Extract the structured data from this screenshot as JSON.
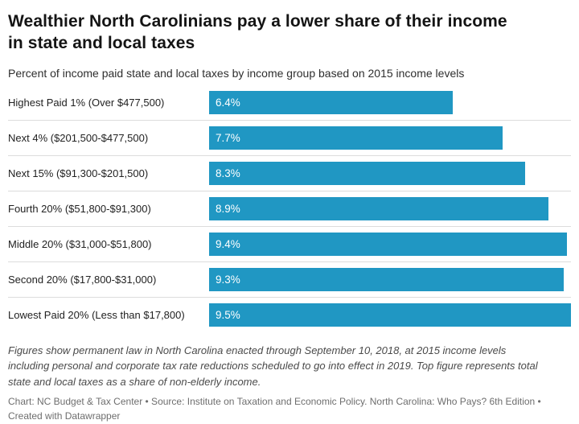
{
  "header": {
    "title": "Wealthier North Carolinians pay a lower share of their income in state and local taxes",
    "subtitle": "Percent of income paid state and local taxes by income group based on 2015 income levels"
  },
  "chart_data": {
    "type": "bar",
    "orientation": "horizontal",
    "title": "Wealthier North Carolinians pay a lower share of their income in state and local taxes",
    "subtitle": "Percent of income paid state and local taxes by income group based on 2015 income levels",
    "categories": [
      "Highest Paid 1% (Over $477,500)",
      "Next 4% ($201,500-$477,500)",
      "Next 15% ($91,300-$201,500)",
      "Fourth 20% ($51,800-$91,300)",
      "Middle 20% ($31,000-$51,800)",
      "Second 20% ($17,800-$31,000)",
      "Lowest Paid 20% (Less than $17,800)"
    ],
    "values": [
      6.4,
      7.7,
      8.3,
      8.9,
      9.4,
      9.3,
      9.5
    ],
    "value_labels": [
      "6.4%",
      "7.7%",
      "8.3%",
      "8.9%",
      "9.4%",
      "9.3%",
      "9.5%"
    ],
    "unit": "%",
    "xlim": [
      0,
      9.5
    ],
    "grid": false,
    "legend": false,
    "bar_color": "#2097c3",
    "colors": {
      "bar": "#2097c3",
      "value_label": "#ffffff",
      "category_label": "#222222",
      "row_separator": "#dcdcdc",
      "title": "#141414",
      "notes": "#4a4a4a",
      "credit": "#6e6e6e"
    }
  },
  "footer": {
    "notes": "Figures show permanent law in North Carolina enacted through September 10, 2018, at 2015 income levels including personal and corporate tax rate reductions scheduled to go into effect in 2019. Top figure represents total state and local taxes as a share of non-elderly income.",
    "credit": "Chart: NC Budget & Tax Center • Source: Institute on Taxation and Economic Policy. North Carolina: Who Pays? 6th Edition • Created with Datawrapper"
  }
}
